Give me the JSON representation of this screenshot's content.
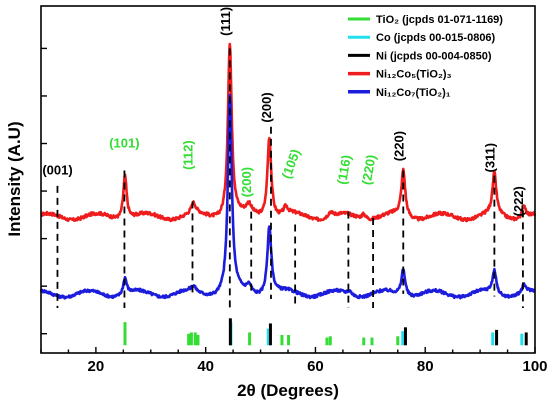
{
  "chart_data": {
    "type": "line",
    "xlabel": "2θ (Degrees)",
    "ylabel": "Intensity (A.U)",
    "xlim": [
      10,
      100
    ],
    "x_ticks": [
      20,
      40,
      60,
      80,
      100
    ],
    "y_ticks_shown": false,
    "grid": false,
    "legend_position": "top-right",
    "legend": [
      {
        "id": "tio2",
        "text": "TiO₂ (jcpds 01-071-1169)",
        "color": "#33dd33",
        "kind": "line"
      },
      {
        "id": "co",
        "text": "Co (jcpds 00-015-0806)",
        "color": "#22e0ee",
        "kind": "line"
      },
      {
        "id": "ni",
        "text": "Ni (jcpds 00-004-0850)",
        "color": "#000000",
        "kind": "line"
      },
      {
        "id": "ni12co5",
        "text": "Ni₁₂Co₅(TiO₂)₃",
        "color": "#ee1c1c",
        "kind": "series"
      },
      {
        "id": "ni12co7",
        "text": "Ni₁₂Co₇(TiO₂)₁",
        "color": "#1c1cdd",
        "kind": "series"
      }
    ],
    "series": [
      {
        "id": "ni12co5",
        "color": "#ee1c1c",
        "baseline": 10.6,
        "noise": 0.25,
        "peaks": [
          {
            "x": 25.3,
            "h": 3.4,
            "w": 0.38
          },
          {
            "x": 37.8,
            "h": 0.8,
            "w": 0.5
          },
          {
            "x": 44.4,
            "h": 13.6,
            "w": 0.42
          },
          {
            "x": 47.9,
            "h": 0.7,
            "w": 0.5
          },
          {
            "x": 51.6,
            "h": 6.4,
            "w": 0.42
          },
          {
            "x": 54.6,
            "h": 0.6,
            "w": 0.5
          },
          {
            "x": 62.7,
            "h": 0.4,
            "w": 0.5
          },
          {
            "x": 68.8,
            "h": 0.4,
            "w": 0.5
          },
          {
            "x": 76.0,
            "h": 3.6,
            "w": 0.42
          },
          {
            "x": 92.6,
            "h": 3.2,
            "w": 0.42
          },
          {
            "x": 98.0,
            "h": 1.0,
            "w": 0.42
          }
        ]
      },
      {
        "id": "ni12co7",
        "color": "#1c1cdd",
        "baseline": 4.6,
        "noise": 0.22,
        "peaks": [
          {
            "x": 25.3,
            "h": 1.3,
            "w": 0.38
          },
          {
            "x": 37.8,
            "h": 0.4,
            "w": 0.5
          },
          {
            "x": 44.4,
            "h": 15.4,
            "w": 0.42
          },
          {
            "x": 47.9,
            "h": 0.6,
            "w": 0.5
          },
          {
            "x": 51.6,
            "h": 5.3,
            "w": 0.45
          },
          {
            "x": 66.2,
            "h": 0.3,
            "w": 0.5
          },
          {
            "x": 76.0,
            "h": 2.1,
            "w": 0.42
          },
          {
            "x": 92.6,
            "h": 1.8,
            "w": 0.42
          },
          {
            "x": 98.0,
            "h": 0.6,
            "w": 0.42
          }
        ]
      }
    ],
    "reference_bars": [
      {
        "x": 25.3,
        "h": 1.8,
        "color": "#33dd33"
      },
      {
        "x": 36.9,
        "h": 0.9,
        "color": "#33dd33"
      },
      {
        "x": 37.4,
        "h": 1.0,
        "color": "#33dd33"
      },
      {
        "x": 38.1,
        "h": 1.0,
        "color": "#33dd33"
      },
      {
        "x": 38.6,
        "h": 0.8,
        "color": "#33dd33"
      },
      {
        "x": 44.6,
        "h": 1.8,
        "color": "#22e0ee"
      },
      {
        "x": 44.5,
        "h": 2.1,
        "color": "#000000"
      },
      {
        "x": 48.0,
        "h": 1.0,
        "color": "#33dd33"
      },
      {
        "x": 51.4,
        "h": 1.3,
        "color": "#22e0ee"
      },
      {
        "x": 51.8,
        "h": 1.7,
        "color": "#000000"
      },
      {
        "x": 53.9,
        "h": 0.8,
        "color": "#33dd33"
      },
      {
        "x": 55.1,
        "h": 0.8,
        "color": "#33dd33"
      },
      {
        "x": 62.1,
        "h": 0.6,
        "color": "#33dd33"
      },
      {
        "x": 62.7,
        "h": 0.7,
        "color": "#33dd33"
      },
      {
        "x": 68.8,
        "h": 0.6,
        "color": "#33dd33"
      },
      {
        "x": 70.3,
        "h": 0.6,
        "color": "#33dd33"
      },
      {
        "x": 75.0,
        "h": 0.7,
        "color": "#33dd33"
      },
      {
        "x": 75.9,
        "h": 1.1,
        "color": "#22e0ee"
      },
      {
        "x": 76.4,
        "h": 1.4,
        "color": "#000000"
      },
      {
        "x": 92.3,
        "h": 1.0,
        "color": "#22e0ee"
      },
      {
        "x": 93.0,
        "h": 1.2,
        "color": "#000000"
      },
      {
        "x": 97.6,
        "h": 0.9,
        "color": "#22e0ee"
      },
      {
        "x": 98.4,
        "h": 1.0,
        "color": "#000000"
      }
    ],
    "annotations": [
      {
        "text": "(001)",
        "x": 13.0,
        "color": "#000000",
        "rot": 0,
        "ly": 13.9,
        "dash_top": 13.0,
        "dash_bot": 3.5
      },
      {
        "text": "(101)",
        "x": 25.2,
        "color": "#33dd33",
        "rot": 0,
        "ly": 16.0,
        "dash_top": 14.2,
        "dash_bot": 3.5
      },
      {
        "text": "(112)",
        "x": 37.6,
        "color": "#33dd33",
        "rot": -90,
        "ly": 15.4,
        "dash_top": 11.8,
        "dash_bot": 4.5
      },
      {
        "text": "(111)",
        "x": 44.4,
        "color": "#000000",
        "rot": -90,
        "ly": 25.8,
        "dash_top": 23.7,
        "dash_bot": 3.5
      },
      {
        "text": "(200)",
        "x": 48.3,
        "color": "#33dd33",
        "rot": -90,
        "ly": 13.3,
        "dash_top": 11.0,
        "dash_bot": 4.6
      },
      {
        "text": "(200)",
        "x": 51.9,
        "color": "#000000",
        "rot": -90,
        "ly": 19.1,
        "dash_top": 17.6,
        "dash_bot": 4.2
      },
      {
        "text": "(105)",
        "x": 56.3,
        "color": "#33dd33",
        "rot": -70,
        "ly": 14.6,
        "dash_top": 10.0,
        "dash_bot": 3.5
      },
      {
        "text": "(116)",
        "x": 66.0,
        "color": "#33dd33",
        "rot": -80,
        "ly": 14.2,
        "dash_top": 11.0,
        "dash_bot": 3.5
      },
      {
        "text": "(220)",
        "x": 70.5,
        "color": "#33dd33",
        "rot": -80,
        "ly": 14.2,
        "dash_top": 10.5,
        "dash_bot": 3.5
      },
      {
        "text": "(220)",
        "x": 76.0,
        "color": "#000000",
        "rot": -90,
        "ly": 16.1,
        "dash_top": 14.2,
        "dash_bot": 4.6
      },
      {
        "text": "(311)",
        "x": 92.6,
        "color": "#000000",
        "rot": -90,
        "ly": 15.2,
        "dash_top": 13.8,
        "dash_bot": 4.4
      },
      {
        "text": "(222)",
        "x": 97.8,
        "color": "#000000",
        "rot": -90,
        "ly": 11.8,
        "dash_top": 11.1,
        "dash_bot": 3.5
      }
    ]
  }
}
